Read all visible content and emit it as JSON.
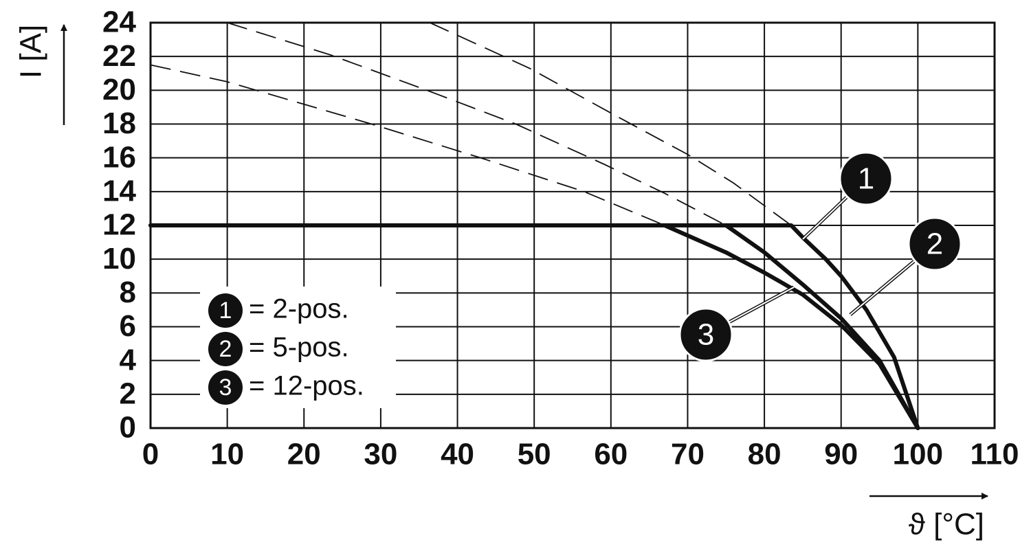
{
  "chart_data": {
    "type": "line",
    "x_label": "ϑ [°C]",
    "y_label": "I [A]",
    "xlim": [
      0,
      110
    ],
    "ylim": [
      0,
      24
    ],
    "xticks": [
      0,
      10,
      20,
      30,
      40,
      50,
      60,
      70,
      80,
      90,
      100,
      110
    ],
    "yticks": [
      0,
      2,
      4,
      6,
      8,
      10,
      12,
      14,
      16,
      18,
      20,
      22,
      24
    ],
    "grid": true,
    "legend": "lower left",
    "series": [
      {
        "marker": "1",
        "name": "= 2-pos.",
        "color": "#111111",
        "x": [
          0,
          83.5,
          85.2,
          88,
          90,
          93.3,
          96.9,
          100
        ],
        "values": [
          12,
          12,
          11.2,
          10,
          9,
          7,
          4.2,
          0
        ],
        "extrapolation": {
          "x": [
            36.4,
            49.4,
            61,
            70,
            76,
            83.5
          ],
          "values": [
            24,
            21.3,
            18.4,
            16.2,
            14.5,
            12
          ]
        }
      },
      {
        "marker": "2",
        "name": "= 5-pos.",
        "color": "#111111",
        "x": [
          0,
          75,
          80,
          85,
          90,
          95,
          100
        ],
        "values": [
          12,
          12,
          10.4,
          8.5,
          6.5,
          4,
          0
        ],
        "extrapolation": {
          "x": [
            10,
            23.4,
            36,
            47.6,
            59.2,
            67,
            75
          ],
          "values": [
            24,
            22.1,
            20,
            18,
            15.6,
            13.9,
            12
          ]
        }
      },
      {
        "marker": "3",
        "name": "= 12-pos.",
        "color": "#111111",
        "x": [
          0,
          67,
          75,
          80,
          85,
          90,
          95,
          100
        ],
        "values": [
          12,
          12,
          10.4,
          9.2,
          7.9,
          6.1,
          3.8,
          0
        ],
        "extrapolation": {
          "x": [
            0,
            10,
            28.8,
            43,
            56.5,
            67
          ],
          "values": [
            21.5,
            20.5,
            18,
            16,
            14,
            12
          ]
        }
      }
    ]
  }
}
